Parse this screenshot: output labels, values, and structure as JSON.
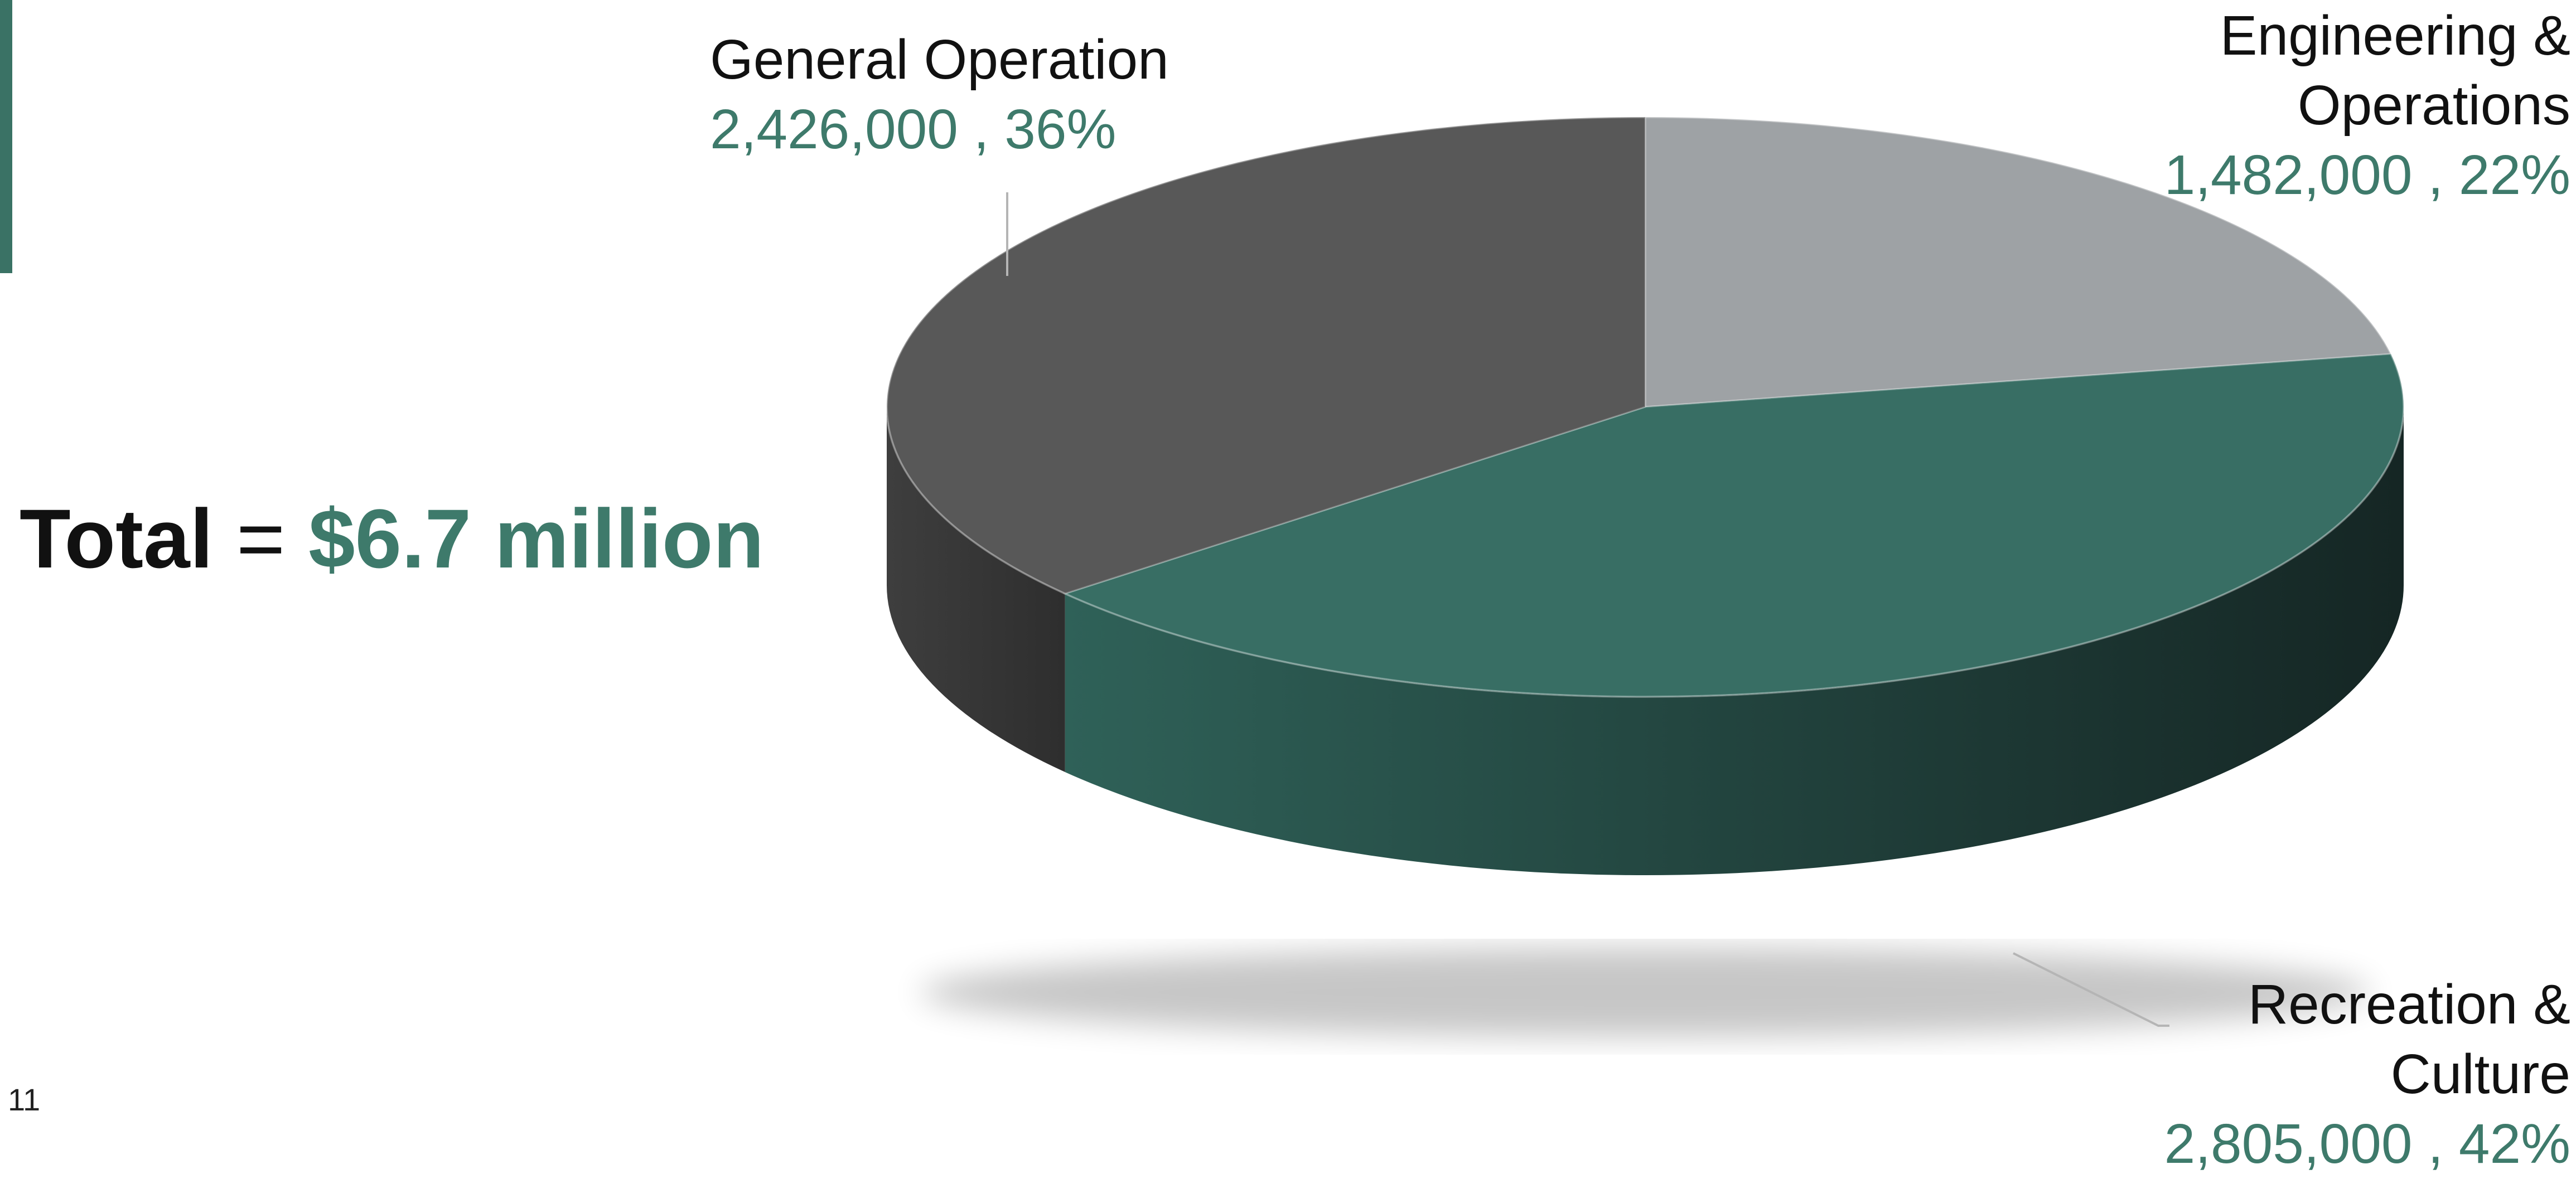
{
  "page_number": "11",
  "total": {
    "label": "Total",
    "equals": "=",
    "amount": "$6.7 million"
  },
  "colors": {
    "accent": "#3a7265",
    "general_operation": "#585858",
    "engineering_operations": "#9ea2a5",
    "recreation_culture": "#386e64",
    "value_text": "#3e7a6b"
  },
  "chart_data": {
    "type": "pie",
    "style": "3d",
    "slices": [
      {
        "label": "Engineering & Operations",
        "value": 1482000,
        "percent": 22,
        "value_label": "1,482,000 , 22%"
      },
      {
        "label": "Recreation & Culture",
        "value": 2805000,
        "percent": 42,
        "value_label": "2,805,000 , 42%"
      },
      {
        "label": "General Operation",
        "value": 2426000,
        "percent": 36,
        "value_label": "2,426,000 , 36%"
      }
    ]
  }
}
